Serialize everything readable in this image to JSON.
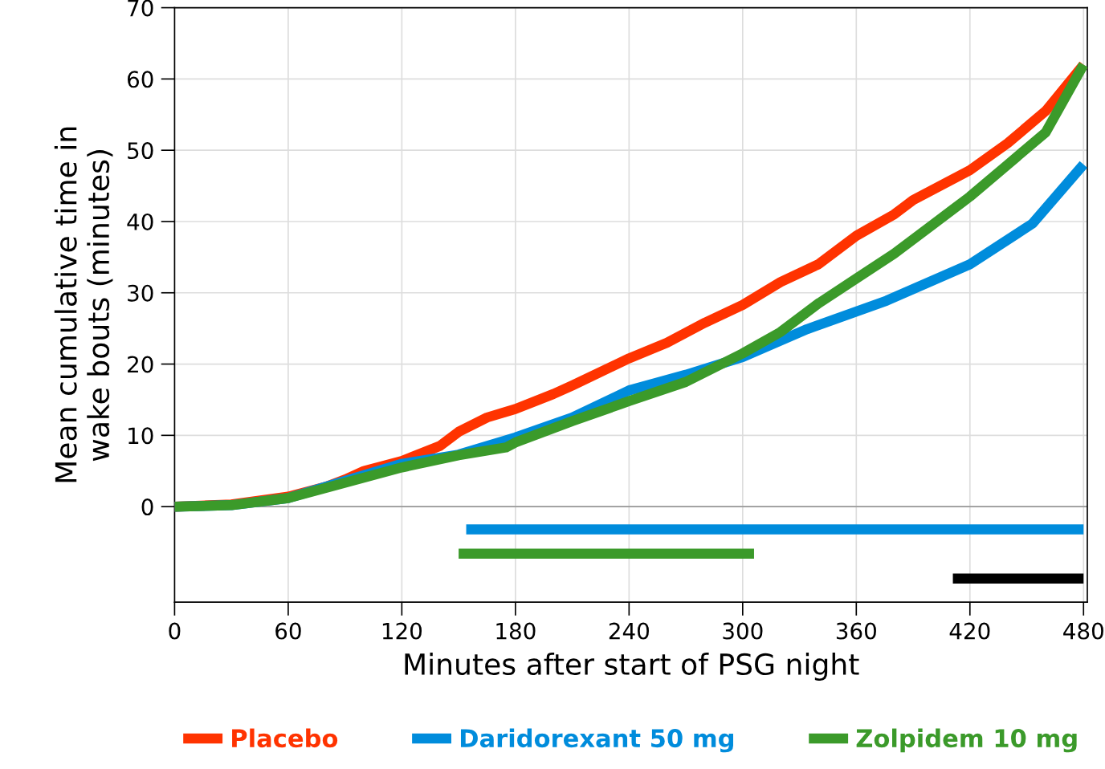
{
  "chart_data": {
    "type": "line",
    "xlabel": "Minutes after start of PSG night",
    "ylabel": "Mean cumulative time in\nwake bouts (minutes)",
    "xlim": [
      0,
      482
    ],
    "ylim": [
      -13.4,
      70
    ],
    "xticks": [
      0,
      60,
      120,
      180,
      240,
      300,
      360,
      420,
      480
    ],
    "yticks": [
      0,
      10,
      20,
      30,
      40,
      50,
      60,
      70
    ],
    "grid": true,
    "legend": "bottom",
    "line_style": "solid",
    "marker": "none",
    "ref_lines": [
      {
        "axis": "y",
        "value": 0,
        "color": "#999999"
      }
    ],
    "series": [
      {
        "name": "Placebo",
        "color": "#ff3300",
        "x": [
          0,
          30,
          60,
          80,
          90,
          100,
          120,
          140,
          150,
          165,
          180,
          200,
          210,
          240,
          260,
          280,
          300,
          320,
          340,
          360,
          380,
          390,
          420,
          440,
          460,
          480
        ],
        "values": [
          0,
          0.3,
          1.4,
          2.8,
          3.8,
          5,
          6.4,
          8.5,
          10.5,
          12.5,
          13.7,
          15.8,
          17,
          20.8,
          23,
          25.8,
          28.3,
          31.5,
          34,
          38,
          41,
          43,
          47.2,
          51,
          55.5,
          62
        ]
      },
      {
        "name": "Daridorexant 50 mg",
        "color": "#008cdc",
        "x": [
          0,
          30,
          60,
          120,
          150,
          180,
          210,
          240,
          270,
          300,
          334,
          376,
          420,
          453,
          480
        ],
        "values": [
          0,
          0.2,
          1.2,
          6,
          7.3,
          9.7,
          12.5,
          16.3,
          18.5,
          21,
          24.9,
          28.9,
          34,
          39.7,
          48
        ]
      },
      {
        "name": "Zolpidem 10 mg",
        "color": "#3b9a2a",
        "x": [
          0,
          30,
          60,
          120,
          150,
          175,
          180,
          210,
          240,
          270,
          300,
          320,
          340,
          360,
          380,
          400,
          420,
          440,
          460,
          480
        ],
        "values": [
          0,
          0.2,
          1.2,
          5.5,
          7.2,
          8.3,
          9,
          12,
          14.8,
          17.5,
          21.5,
          24.5,
          28.5,
          32,
          35.5,
          39.5,
          43.5,
          48,
          52.5,
          62
        ]
      },
      {
        "color": "#008cdc",
        "x": [
          154,
          480
        ],
        "values": [
          -3.2,
          -3.2
        ]
      },
      {
        "color": "#3b9a2a",
        "x": [
          150,
          306
        ],
        "values": [
          -6.6,
          -6.6
        ]
      },
      {
        "color": "#000000",
        "x": [
          411,
          480
        ],
        "values": [
          -10.1,
          -10.1
        ]
      }
    ]
  }
}
